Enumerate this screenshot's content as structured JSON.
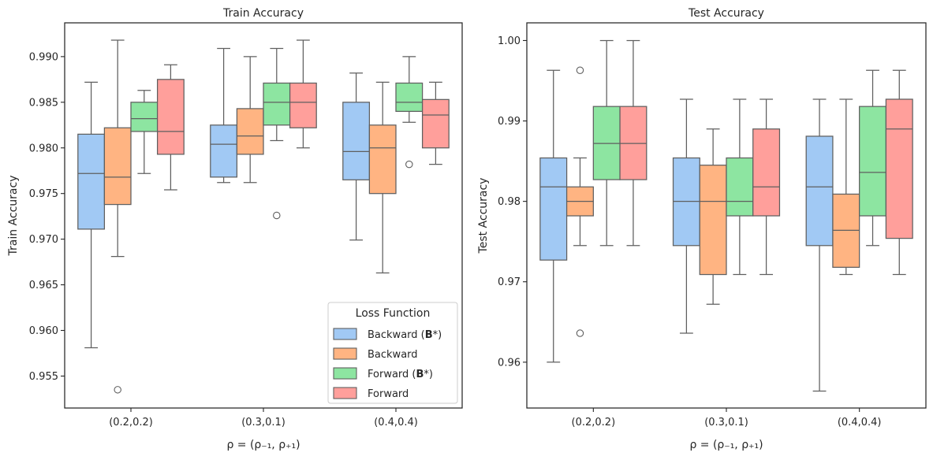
{
  "chart_data": [
    {
      "type": "box",
      "title": "Train Accuracy",
      "xlabel": "ρ = (ρ₋₁, ρ₊₁)",
      "ylabel": "Train Accuracy",
      "ylim": [
        0.9515,
        0.9937
      ],
      "yticks": [
        0.955,
        0.96,
        0.965,
        0.97,
        0.975,
        0.98,
        0.985,
        0.99
      ],
      "ytick_labels": [
        "0.955",
        "0.960",
        "0.965",
        "0.970",
        "0.975",
        "0.980",
        "0.985",
        "0.990"
      ],
      "categories": [
        "(0.2,0.2)",
        "(0.3,0.1)",
        "(0.4,0.4)"
      ],
      "grid": false,
      "legend": {
        "title": "Loss Function",
        "position": "lower-right",
        "entries": [
          {
            "prefix": "Backward (",
            "bold": "B",
            "suffix": "*)"
          },
          {
            "prefix": "Backward",
            "bold": "",
            "suffix": ""
          },
          {
            "prefix": "Forward (",
            "bold": "B",
            "suffix": "*)"
          },
          {
            "prefix": "Forward",
            "bold": "",
            "suffix": ""
          }
        ]
      },
      "series": [
        {
          "color": "#a1c9f4",
          "boxes": [
            {
              "whislo": 0.9581,
              "q1": 0.9711,
              "med": 0.9772,
              "q3": 0.9815,
              "whishi": 0.9872,
              "fliers": []
            },
            {
              "whislo": 0.9762,
              "q1": 0.9768,
              "med": 0.9804,
              "q3": 0.9825,
              "whishi": 0.9909,
              "fliers": []
            },
            {
              "whislo": 0.9699,
              "q1": 0.9765,
              "med": 0.9796,
              "q3": 0.985,
              "whishi": 0.9882,
              "fliers": []
            }
          ]
        },
        {
          "color": "#ffb482",
          "boxes": [
            {
              "whislo": 0.9681,
              "q1": 0.9738,
              "med": 0.9768,
              "q3": 0.9822,
              "whishi": 0.9918,
              "fliers": [
                0.9535
              ]
            },
            {
              "whislo": 0.9762,
              "q1": 0.9793,
              "med": 0.9813,
              "q3": 0.9843,
              "whishi": 0.99,
              "fliers": []
            },
            {
              "whislo": 0.9663,
              "q1": 0.975,
              "med": 0.98,
              "q3": 0.9825,
              "whishi": 0.9872,
              "fliers": []
            }
          ]
        },
        {
          "color": "#8de5a1",
          "boxes": [
            {
              "whislo": 0.9772,
              "q1": 0.9818,
              "med": 0.9832,
              "q3": 0.985,
              "whishi": 0.9863,
              "fliers": []
            },
            {
              "whislo": 0.9808,
              "q1": 0.9825,
              "med": 0.985,
              "q3": 0.9871,
              "whishi": 0.9909,
              "fliers": [
                0.9726
              ]
            },
            {
              "whislo": 0.9828,
              "q1": 0.984,
              "med": 0.985,
              "q3": 0.9871,
              "whishi": 0.99,
              "fliers": [
                0.9782
              ]
            }
          ]
        },
        {
          "color": "#ff9f9b",
          "boxes": [
            {
              "whislo": 0.9754,
              "q1": 0.9793,
              "med": 0.9818,
              "q3": 0.9875,
              "whishi": 0.9891,
              "fliers": []
            },
            {
              "whislo": 0.98,
              "q1": 0.9822,
              "med": 0.985,
              "q3": 0.9871,
              "whishi": 0.9918,
              "fliers": []
            },
            {
              "whislo": 0.9782,
              "q1": 0.98,
              "med": 0.9836,
              "q3": 0.9853,
              "whishi": 0.9872,
              "fliers": []
            }
          ]
        }
      ]
    },
    {
      "type": "box",
      "title": "Test Accuracy",
      "xlabel": "ρ = (ρ₋₁, ρ₊₁)",
      "ylabel": "Test Accuracy",
      "ylim": [
        0.9543,
        1.0022
      ],
      "yticks": [
        0.96,
        0.97,
        0.98,
        0.99,
        1.0
      ],
      "ytick_labels": [
        "0.96",
        "0.97",
        "0.98",
        "0.99",
        "1.00"
      ],
      "categories": [
        "(0.2,0.2)",
        "(0.3,0.1)",
        "(0.4,0.4)"
      ],
      "grid": false,
      "series": [
        {
          "color": "#a1c9f4",
          "boxes": [
            {
              "whislo": 0.96,
              "q1": 0.9727,
              "med": 0.9818,
              "q3": 0.9854,
              "whishi": 0.9963,
              "fliers": []
            },
            {
              "whislo": 0.9636,
              "q1": 0.9745,
              "med": 0.98,
              "q3": 0.9854,
              "whishi": 0.9927,
              "fliers": []
            },
            {
              "whislo": 0.9564,
              "q1": 0.9745,
              "med": 0.9818,
              "q3": 0.9881,
              "whishi": 0.9927,
              "fliers": []
            }
          ]
        },
        {
          "color": "#ffb482",
          "boxes": [
            {
              "whislo": 0.9745,
              "q1": 0.9782,
              "med": 0.98,
              "q3": 0.9818,
              "whishi": 0.9854,
              "fliers": [
                0.9963,
                0.9636
              ]
            },
            {
              "whislo": 0.9672,
              "q1": 0.9709,
              "med": 0.98,
              "q3": 0.9845,
              "whishi": 0.989,
              "fliers": []
            },
            {
              "whislo": 0.9709,
              "q1": 0.9718,
              "med": 0.9764,
              "q3": 0.9809,
              "whishi": 0.9927,
              "fliers": []
            }
          ]
        },
        {
          "color": "#8de5a1",
          "boxes": [
            {
              "whislo": 0.9745,
              "q1": 0.9827,
              "med": 0.9872,
              "q3": 0.9918,
              "whishi": 1.0,
              "fliers": []
            },
            {
              "whislo": 0.9709,
              "q1": 0.9782,
              "med": 0.98,
              "q3": 0.9854,
              "whishi": 0.9927,
              "fliers": []
            },
            {
              "whislo": 0.9745,
              "q1": 0.9782,
              "med": 0.9836,
              "q3": 0.9918,
              "whishi": 0.9963,
              "fliers": []
            }
          ]
        },
        {
          "color": "#ff9f9b",
          "boxes": [
            {
              "whislo": 0.9745,
              "q1": 0.9827,
              "med": 0.9872,
              "q3": 0.9918,
              "whishi": 1.0,
              "fliers": []
            },
            {
              "whislo": 0.9709,
              "q1": 0.9782,
              "med": 0.9818,
              "q3": 0.989,
              "whishi": 0.9927,
              "fliers": []
            },
            {
              "whislo": 0.9709,
              "q1": 0.9754,
              "med": 0.989,
              "q3": 0.9927,
              "whishi": 0.9963,
              "fliers": []
            }
          ]
        }
      ]
    }
  ]
}
